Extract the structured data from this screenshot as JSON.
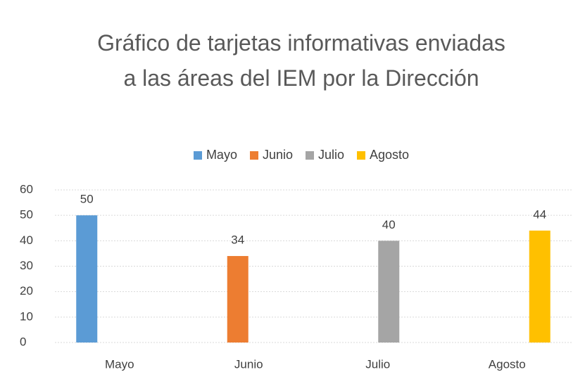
{
  "chart_data": {
    "type": "bar",
    "title": "Gráfico de tarjetas informativas enviadas a las áreas del IEM por la Dirección",
    "categories": [
      "Mayo",
      "Junio",
      "Julio",
      "Agosto"
    ],
    "series": [
      {
        "name": "Mayo",
        "color": "#5b9bd5",
        "values": [
          50,
          null,
          null,
          null
        ]
      },
      {
        "name": "Junio",
        "color": "#ed7d31",
        "values": [
          null,
          34,
          null,
          null
        ]
      },
      {
        "name": "Julio",
        "color": "#a5a5a5",
        "values": [
          null,
          null,
          40,
          null
        ]
      },
      {
        "name": "Agosto",
        "color": "#ffc000",
        "values": [
          null,
          null,
          null,
          44
        ]
      }
    ],
    "ylim": [
      0,
      60
    ],
    "yticks": [
      0,
      10,
      20,
      30,
      40,
      50,
      60
    ],
    "grid": true,
    "legend": "top"
  }
}
